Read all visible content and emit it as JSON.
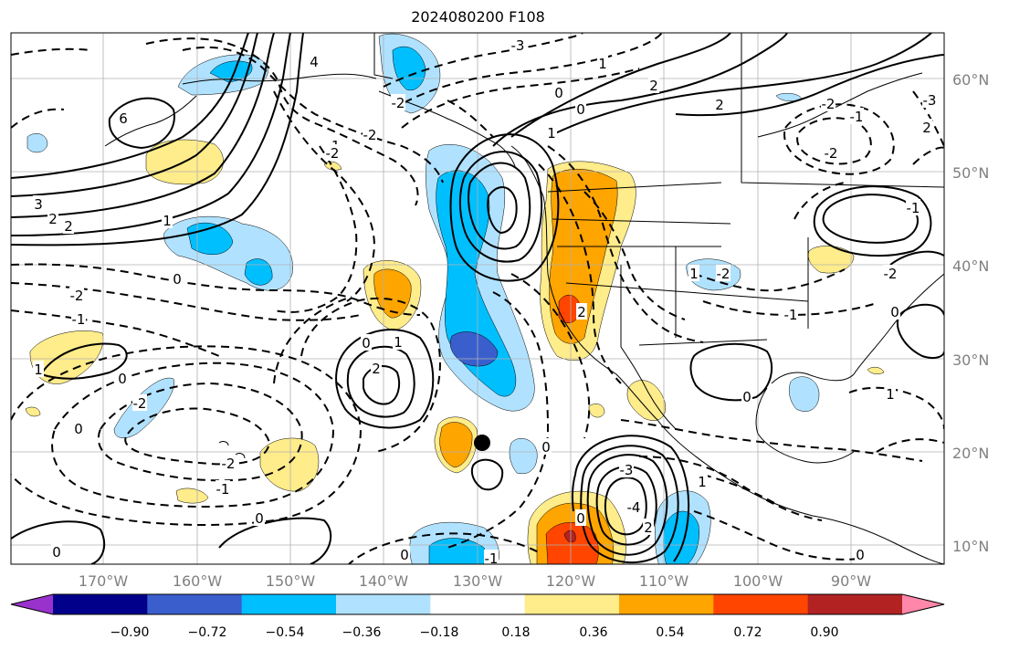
{
  "title": "2024080200 F108",
  "lat_labels": [
    "60°N",
    "50°N",
    "40°N",
    "30°N",
    "20°N",
    "10°N"
  ],
  "lon_labels": [
    "170°W",
    "160°W",
    "150°W",
    "140°W",
    "130°W",
    "120°W",
    "110°W",
    "100°W",
    "90°W"
  ],
  "colorbar": {
    "ticks": [
      "−0.90",
      "−0.72",
      "−0.54",
      "−0.36",
      "−0.18",
      "0.18",
      "0.36",
      "0.54",
      "0.72",
      "0.90"
    ],
    "colors": [
      "#9932cc",
      "#00008b",
      "#3a5fcd",
      "#00bfff",
      "#b0e2ff",
      "#ffffff",
      "#ffec8b",
      "#ffa500",
      "#ff4500",
      "#b22222",
      "#ff88aa"
    ]
  },
  "contour_labels": [
    "-3",
    "4",
    "6",
    "-2",
    "-1",
    "1",
    "-2",
    "3",
    "2",
    "2",
    "1",
    "0",
    "-2",
    "-1",
    "0",
    "1",
    "-2",
    "0",
    "-2",
    "-1",
    "-2",
    "0",
    "1",
    "2",
    "0",
    "0",
    "-3",
    "1",
    "2",
    "0",
    "-4",
    "2",
    "-1",
    "0",
    "-2",
    "1",
    "-1",
    "0",
    "-2",
    "-1",
    "-2",
    "2",
    "-3",
    "2",
    "-2",
    "0",
    "1",
    "2",
    "0",
    "0",
    "1",
    "-1",
    "0",
    "0"
  ]
}
